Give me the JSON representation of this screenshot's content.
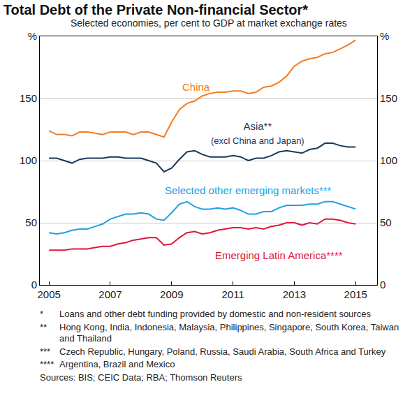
{
  "chart_data": {
    "type": "line",
    "title": "Total Debt of the Private Non-financial Sector*",
    "subtitle": "Selected economies, per cent to GDP at market exchange rates",
    "x": [
      2005,
      2005.25,
      2005.5,
      2005.75,
      2006,
      2006.25,
      2006.5,
      2006.75,
      2007,
      2007.25,
      2007.5,
      2007.75,
      2008,
      2008.25,
      2008.5,
      2008.75,
      2009,
      2009.25,
      2009.5,
      2009.75,
      2010,
      2010.25,
      2010.5,
      2010.75,
      2011,
      2011.25,
      2011.5,
      2011.75,
      2012,
      2012.25,
      2012.5,
      2012.75,
      2013,
      2013.25,
      2013.5,
      2013.75,
      2014,
      2014.25,
      2014.5,
      2014.75,
      2015
    ],
    "series": [
      {
        "name": "China",
        "color": "#f47b20",
        "values": [
          124,
          121,
          121,
          120,
          123,
          123,
          122,
          121,
          123,
          123,
          123,
          121,
          123,
          123,
          121,
          119,
          131,
          141,
          146,
          148,
          152,
          154,
          155,
          155,
          156,
          156,
          154,
          155,
          159,
          160,
          163,
          168,
          176,
          180,
          182,
          183,
          186,
          187,
          190,
          193,
          197
        ]
      },
      {
        "name": "Asia**",
        "subtitle": "(excl China and Japan)",
        "color": "#173a5e",
        "values": [
          102,
          102,
          100,
          98,
          101,
          102,
          102,
          102,
          103,
          103,
          102,
          102,
          102,
          100,
          98,
          91,
          94,
          101,
          107,
          108,
          105,
          103,
          103,
          103,
          104,
          103,
          100,
          102,
          102,
          104,
          107,
          108,
          107,
          106,
          109,
          110,
          114,
          114,
          112,
          111,
          111
        ]
      },
      {
        "name": "Selected other emerging markets***",
        "color": "#20a2de",
        "values": [
          42,
          41,
          42,
          44,
          45,
          45,
          47,
          49,
          53,
          55,
          57,
          57,
          58,
          57,
          53,
          52,
          58,
          65,
          67,
          63,
          61,
          61,
          62,
          61,
          62,
          60,
          57,
          57,
          59,
          59,
          62,
          64,
          64,
          64,
          65,
          65,
          67,
          67,
          65,
          63,
          61
        ]
      },
      {
        "name": "Emerging Latin America****",
        "color": "#e2173d",
        "values": [
          28,
          28,
          28,
          29,
          29,
          29,
          30,
          31,
          31,
          33,
          34,
          36,
          37,
          38,
          38,
          32,
          33,
          38,
          42,
          43,
          41,
          42,
          44,
          45,
          46,
          46,
          45,
          46,
          45,
          47,
          48,
          50,
          50,
          48,
          50,
          49,
          53,
          53,
          52,
          50,
          49
        ]
      }
    ],
    "xlim": [
      2004.7,
      2015.7
    ],
    "xticks": [
      2005,
      2007,
      2009,
      2011,
      2013,
      2015
    ],
    "ylim": [
      0,
      200
    ],
    "yticks": [
      0,
      50,
      100,
      150,
      {
        "value": 200,
        "label": "%"
      }
    ],
    "y2lim": [
      0,
      200
    ],
    "y2ticks": [
      0,
      50,
      100,
      150,
      {
        "value": 200,
        "label": "%"
      }
    ],
    "grid": true,
    "notes": [
      {
        "mark": "*",
        "text": "Loans and other debt funding provided by domestic and non-resident sources"
      },
      {
        "mark": "**",
        "text": "Hong Kong, India, Indonesia, Malaysia, Philippines, Singapore, South Korea, Taiwan and Thailand"
      },
      {
        "mark": "***",
        "text": "Czech Republic, Hungary, Poland, Russia, Saudi Arabia, South Africa and Turkey"
      },
      {
        "mark": "****",
        "text": "Argentina, Brazil and Mexico"
      }
    ],
    "source": "Sources: BIS; CEIC Data; RBA; Thomson Reuters"
  }
}
